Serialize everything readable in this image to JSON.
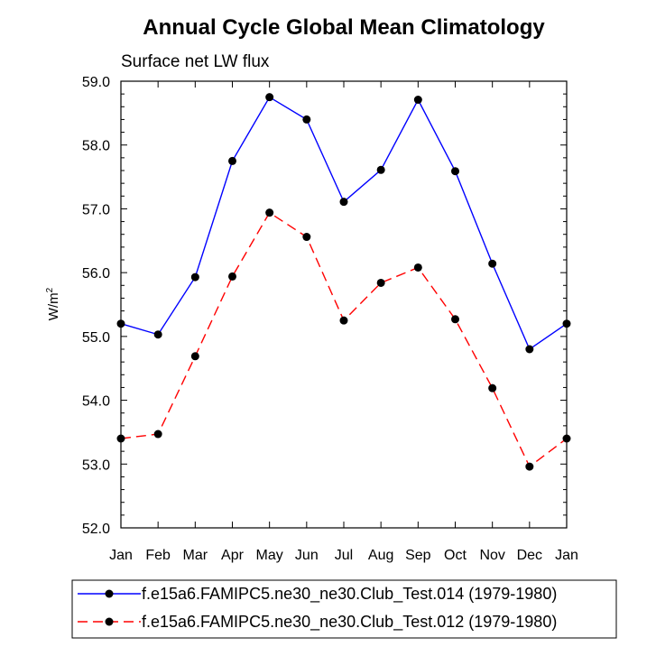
{
  "chart_data": {
    "type": "line",
    "title": "Annual Cycle Global Mean Climatology",
    "subtitle": "Surface net LW flux",
    "xlabel": "",
    "ylabel_main": "W/m",
    "ylabel_sup": "2",
    "categories": [
      "Jan",
      "Feb",
      "Mar",
      "Apr",
      "May",
      "Jun",
      "Jul",
      "Aug",
      "Sep",
      "Oct",
      "Nov",
      "Dec",
      "Jan"
    ],
    "ylim": [
      52.0,
      59.0
    ],
    "yticks": [
      "52.0",
      "53.0",
      "54.0",
      "55.0",
      "56.0",
      "57.0",
      "58.0",
      "59.0"
    ],
    "series": [
      {
        "name": "f.e15a6.FAMIPC5.ne30_ne30.Club_Test.014 (1979-1980)",
        "color": "#0000ff",
        "style": "solid",
        "values": [
          55.2,
          55.03,
          55.93,
          57.75,
          58.75,
          58.4,
          57.11,
          57.61,
          58.71,
          57.59,
          56.14,
          54.8,
          55.2
        ]
      },
      {
        "name": "f.e15a6.FAMIPC5.ne30_ne30.Club_Test.012 (1979-1980)",
        "color": "#ff0000",
        "style": "dashed",
        "values": [
          53.4,
          53.47,
          54.69,
          55.94,
          56.94,
          56.56,
          55.25,
          55.84,
          56.08,
          55.27,
          54.19,
          52.96,
          53.4
        ]
      }
    ],
    "legend_position": "bottom"
  }
}
